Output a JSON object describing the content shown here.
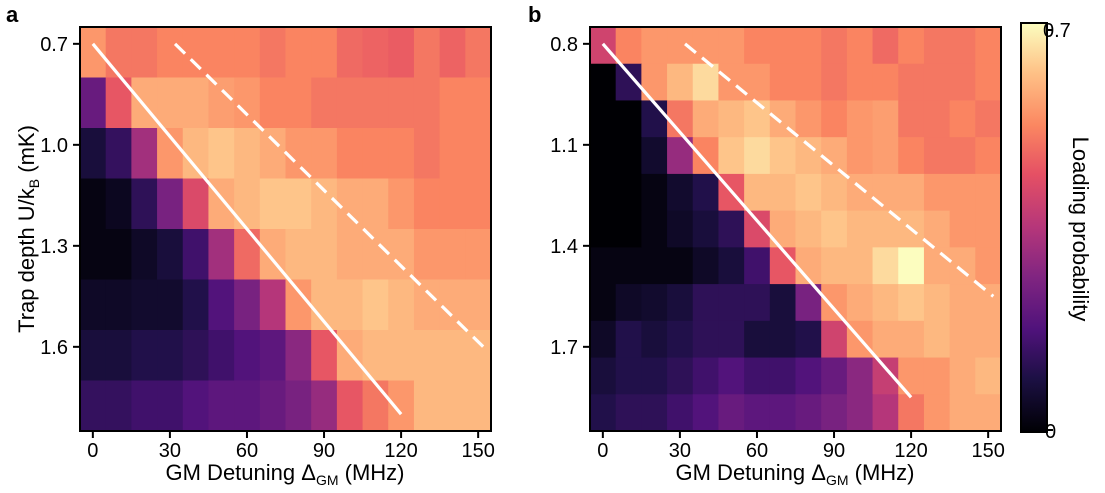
{
  "chart_data": [
    {
      "type": "heatmap",
      "panel_label": "a",
      "xlabel_main": "GM Detuning Δ",
      "xlabel_sub": "GM",
      "xlabel_tail": " (MHz)",
      "ylabel_main": "Trap depth U/k",
      "ylabel_sub": "B",
      "ylabel_tail": " (mK)",
      "x_ticks": [
        0,
        30,
        60,
        90,
        120,
        150
      ],
      "y_ticks": [
        "0.7",
        "1.0",
        "1.3",
        "1.6"
      ],
      "x_centers": [
        0,
        10,
        20,
        30,
        40,
        50,
        60,
        70,
        80,
        90,
        100,
        110,
        120,
        130,
        140,
        150
      ],
      "y_centers": [
        0.7,
        0.8,
        0.9,
        1.0,
        1.1,
        1.2,
        1.3,
        1.4
      ],
      "xlim": [
        -5,
        155
      ],
      "ylim": [
        0.65,
        1.85
      ],
      "values": [
        [
          0.55,
          0.5,
          0.5,
          0.52,
          0.52,
          0.52,
          0.52,
          0.5,
          0.52,
          0.52,
          0.48,
          0.47,
          0.46,
          0.5,
          0.47,
          0.5
        ],
        [
          0.22,
          0.45,
          0.58,
          0.58,
          0.58,
          0.56,
          0.55,
          0.52,
          0.52,
          0.5,
          0.5,
          0.5,
          0.5,
          0.5,
          0.52,
          0.52
        ],
        [
          0.08,
          0.13,
          0.32,
          0.55,
          0.6,
          0.62,
          0.6,
          0.58,
          0.55,
          0.55,
          0.52,
          0.52,
          0.52,
          0.5,
          0.52,
          0.52
        ],
        [
          0.02,
          0.04,
          0.12,
          0.25,
          0.42,
          0.58,
          0.6,
          0.62,
          0.62,
          0.6,
          0.58,
          0.58,
          0.55,
          0.52,
          0.52,
          0.52
        ],
        [
          0.02,
          0.02,
          0.05,
          0.08,
          0.15,
          0.32,
          0.48,
          0.58,
          0.6,
          0.6,
          0.58,
          0.58,
          0.58,
          0.55,
          0.55,
          0.55
        ],
        [
          0.05,
          0.05,
          0.06,
          0.06,
          0.1,
          0.18,
          0.25,
          0.35,
          0.55,
          0.6,
          0.6,
          0.62,
          0.6,
          0.58,
          0.58,
          0.58
        ],
        [
          0.08,
          0.08,
          0.1,
          0.1,
          0.12,
          0.15,
          0.18,
          0.2,
          0.28,
          0.45,
          0.58,
          0.6,
          0.6,
          0.6,
          0.6,
          0.6
        ],
        [
          0.13,
          0.13,
          0.15,
          0.15,
          0.18,
          0.2,
          0.2,
          0.22,
          0.25,
          0.3,
          0.45,
          0.5,
          0.55,
          0.6,
          0.6,
          0.6
        ]
      ],
      "solid_line": [
        [
          0,
          0.7
        ],
        [
          120,
          1.8
        ]
      ],
      "dashed_line": [
        [
          32,
          0.7
        ],
        [
          152,
          1.6
        ]
      ]
    },
    {
      "type": "heatmap",
      "panel_label": "b",
      "xlabel_main": "GM Detuning Δ",
      "xlabel_sub": "GM",
      "xlabel_tail": " (MHz)",
      "x_ticks": [
        0,
        30,
        60,
        90,
        120,
        150
      ],
      "y_ticks": [
        "0.8",
        "1.1",
        "1.4",
        "1.7"
      ],
      "x_centers": [
        0,
        10,
        20,
        30,
        40,
        50,
        60,
        70,
        80,
        90,
        100,
        110,
        120,
        130,
        140,
        150
      ],
      "y_centers": [
        0.8,
        0.9,
        1.0,
        1.1,
        1.2,
        1.3,
        1.4,
        1.5,
        1.6,
        1.7,
        1.8
      ],
      "xlim": [
        -5,
        155
      ],
      "ylim": [
        0.75,
        1.95
      ],
      "values": [
        [
          0.4,
          0.52,
          0.55,
          0.55,
          0.55,
          0.55,
          0.52,
          0.52,
          0.52,
          0.5,
          0.52,
          0.48,
          0.52,
          0.5,
          0.5,
          0.52
        ],
        [
          0.0,
          0.12,
          0.55,
          0.6,
          0.65,
          0.55,
          0.55,
          0.52,
          0.52,
          0.5,
          0.52,
          0.52,
          0.5,
          0.5,
          0.5,
          0.52
        ],
        [
          0.0,
          0.0,
          0.1,
          0.5,
          0.58,
          0.6,
          0.62,
          0.58,
          0.55,
          0.52,
          0.55,
          0.56,
          0.5,
          0.5,
          0.52,
          0.5
        ],
        [
          0.0,
          0.0,
          0.06,
          0.3,
          0.52,
          0.62,
          0.65,
          0.62,
          0.6,
          0.58,
          0.55,
          0.56,
          0.52,
          0.5,
          0.5,
          0.52
        ],
        [
          0.0,
          0.0,
          0.02,
          0.06,
          0.1,
          0.45,
          0.6,
          0.6,
          0.62,
          0.6,
          0.58,
          0.58,
          0.58,
          0.55,
          0.55,
          0.55
        ],
        [
          0.0,
          0.0,
          0.02,
          0.05,
          0.08,
          0.12,
          0.42,
          0.58,
          0.6,
          0.62,
          0.6,
          0.6,
          0.6,
          0.58,
          0.55,
          0.55
        ],
        [
          0.02,
          0.02,
          0.02,
          0.02,
          0.05,
          0.08,
          0.15,
          0.45,
          0.58,
          0.6,
          0.6,
          0.65,
          0.7,
          0.58,
          0.58,
          0.55
        ],
        [
          0.02,
          0.05,
          0.06,
          0.08,
          0.12,
          0.12,
          0.12,
          0.08,
          0.25,
          0.55,
          0.58,
          0.6,
          0.62,
          0.6,
          0.58,
          0.58
        ],
        [
          0.05,
          0.1,
          0.08,
          0.1,
          0.12,
          0.12,
          0.08,
          0.08,
          0.1,
          0.4,
          0.55,
          0.58,
          0.58,
          0.6,
          0.58,
          0.58
        ],
        [
          0.08,
          0.1,
          0.1,
          0.12,
          0.15,
          0.18,
          0.15,
          0.15,
          0.18,
          0.22,
          0.28,
          0.38,
          0.55,
          0.55,
          0.58,
          0.6
        ],
        [
          0.1,
          0.12,
          0.12,
          0.15,
          0.18,
          0.22,
          0.2,
          0.2,
          0.22,
          0.25,
          0.28,
          0.35,
          0.5,
          0.55,
          0.58,
          0.58
        ]
      ],
      "solid_line": [
        [
          0,
          0.8
        ],
        [
          120,
          1.85
        ]
      ],
      "dashed_line": [
        [
          32,
          0.8
        ],
        [
          152,
          1.55
        ]
      ]
    }
  ],
  "colorbar": {
    "label": "Loading probability",
    "min": 0,
    "max": 0.7,
    "min_label": "0",
    "max_label": "0.7",
    "colormap": "magma"
  }
}
